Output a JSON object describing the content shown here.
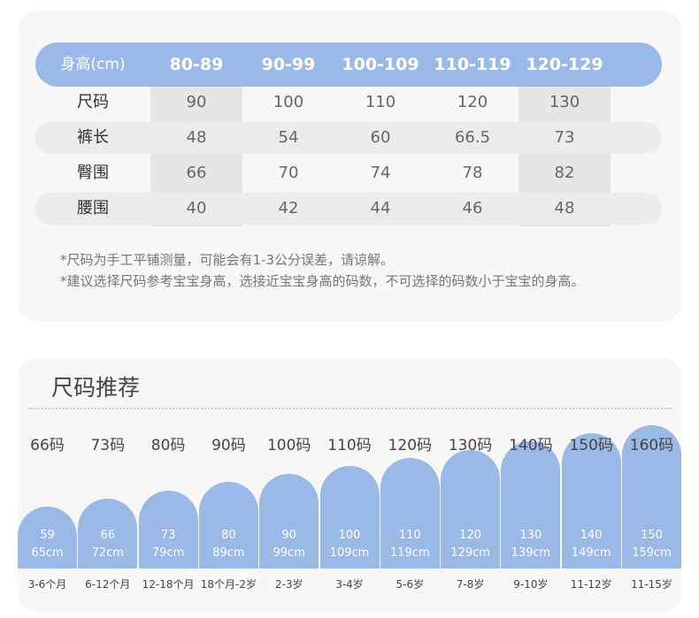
{
  "size_table": {
    "header": [
      "身高(cm)",
      "80-89",
      "90-99",
      "100-109",
      "110-119",
      "120-129"
    ],
    "rows": [
      {
        "label": "尺码",
        "values": [
          "90",
          "100",
          "110",
          "120",
          "130"
        ]
      },
      {
        "label": "裤长",
        "values": [
          "48",
          "54",
          "60",
          "66.5",
          "73"
        ]
      },
      {
        "label": "臀围",
        "values": [
          "66",
          "70",
          "74",
          "78",
          "82"
        ]
      },
      {
        "label": "腰围",
        "values": [
          "40",
          "42",
          "44",
          "46",
          "48"
        ]
      }
    ],
    "notes": [
      "*尺码为手工平铺测量，可能会有1-3公分误差，请谅解。",
      "*建议选择尺码参考宝宝身高，选接近宝宝身高的码数，不可选择的码数小于宝宝的身高。"
    ]
  },
  "recommend": {
    "title": "尺码推荐",
    "items": [
      {
        "size": "66码",
        "v1": "59",
        "v2": "65cm",
        "age": "3-6个月",
        "level": 1
      },
      {
        "size": "73码",
        "v1": "66",
        "v2": "72cm",
        "age": "6-12个月",
        "level": 2
      },
      {
        "size": "80码",
        "v1": "73",
        "v2": "79cm",
        "age": "12-18个月",
        "level": 3
      },
      {
        "size": "90码",
        "v1": "80",
        "v2": "89cm",
        "age": "18个月-2岁",
        "level": 4
      },
      {
        "size": "100码",
        "v1": "90",
        "v2": "99cm",
        "age": "2-3岁",
        "level": 5
      },
      {
        "size": "110码",
        "v1": "100",
        "v2": "109cm",
        "age": "3-4岁",
        "level": 6
      },
      {
        "size": "120码",
        "v1": "110",
        "v2": "119cm",
        "age": "5-6岁",
        "level": 7
      },
      {
        "size": "130码",
        "v1": "120",
        "v2": "129cm",
        "age": "7-8岁",
        "level": 8
      },
      {
        "size": "140码",
        "v1": "130",
        "v2": "139cm",
        "age": "9-10岁",
        "level": 9
      },
      {
        "size": "150码",
        "v1": "140",
        "v2": "149cm",
        "age": "11-12岁",
        "level": 10
      },
      {
        "size": "160码",
        "v1": "150",
        "v2": "159cm",
        "age": "11-15岁",
        "level": 11
      }
    ]
  },
  "colors": {
    "accent": "#9ab9e7",
    "card": "#f7f7f7",
    "row_alt": "#ececec",
    "col_shade": "#e6e6e6"
  }
}
